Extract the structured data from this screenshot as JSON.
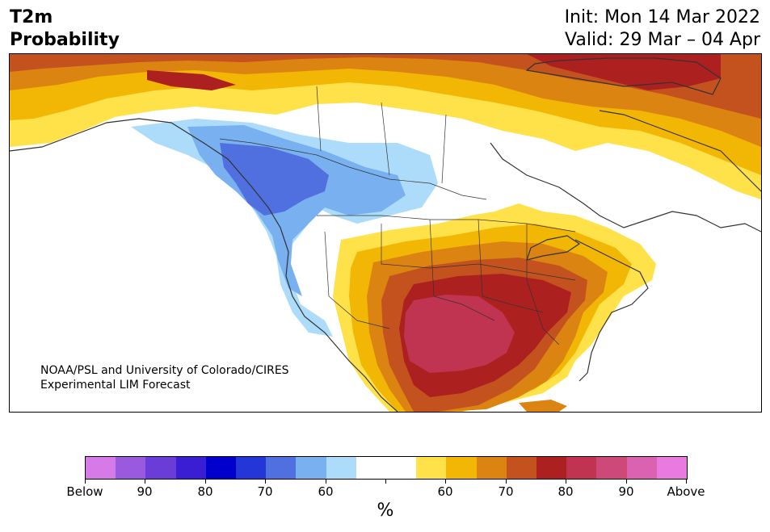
{
  "title": {
    "variable": "T2m",
    "product": "Probability",
    "init": "Init: Mon 14 Mar 2022",
    "valid": "Valid: 29 Mar – 04 Apr"
  },
  "credit": {
    "line1": "NOAA/PSL and University of Colorado/CIRES",
    "line2": "Experimental LIM Forecast"
  },
  "colorbar": {
    "colors": [
      "#d67ae8",
      "#9a5ae0",
      "#6b3dd8",
      "#3a1ed4",
      "#0000cc",
      "#2436d8",
      "#5070e0",
      "#78b0f0",
      "#acdcfa",
      "#ffffff",
      "#ffffff",
      "#ffe14a",
      "#f2b705",
      "#dc8412",
      "#c4521e",
      "#ad2020",
      "#c03452",
      "#cd4a78",
      "#da62b0",
      "#e87ae0"
    ],
    "tick_labels": [
      "Below",
      "90",
      "80",
      "70",
      "60",
      "",
      "60",
      "70",
      "80",
      "90",
      "Above"
    ],
    "unit": "%"
  },
  "map": {
    "colors": {
      "below_60": "#acdcfa",
      "below_70": "#78b0f0",
      "below_80": "#5070e0",
      "neutral": "#ffffff",
      "above_60": "#ffe14a",
      "above_65": "#f2b705",
      "above_70": "#dc8412",
      "above_75": "#c4521e",
      "above_80": "#ad2020",
      "above_85": "#c03452",
      "coast": "#333333"
    }
  }
}
